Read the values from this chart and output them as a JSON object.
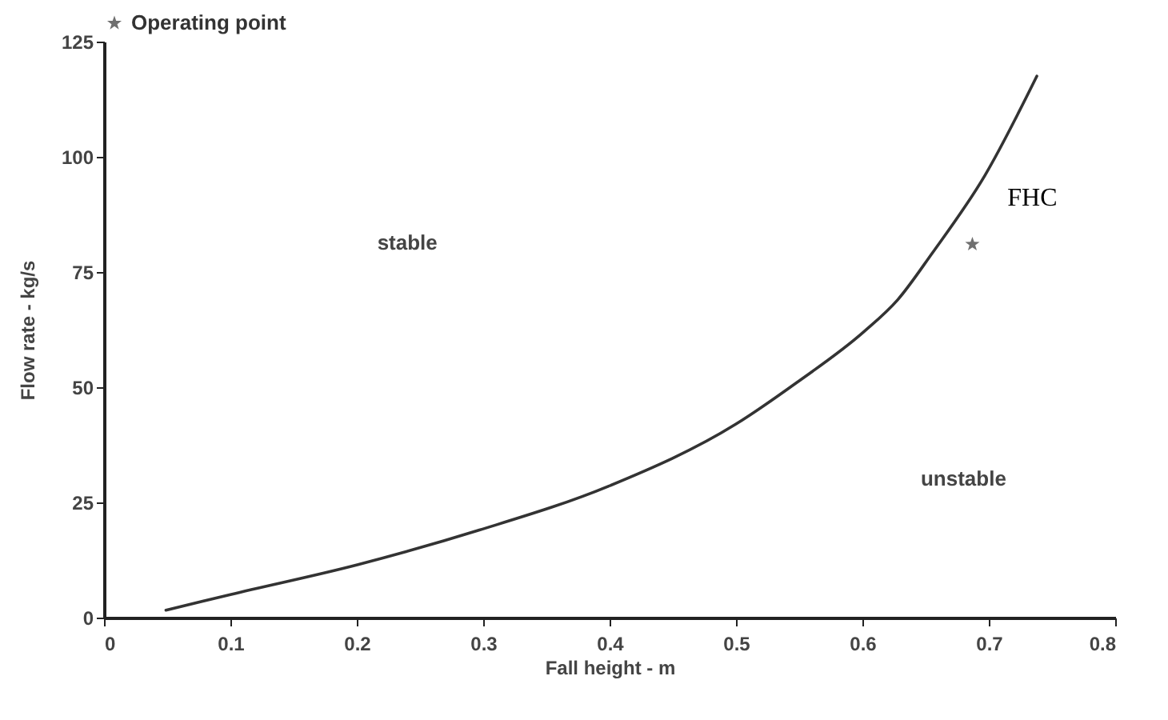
{
  "chart_data": {
    "type": "line",
    "xlabel": "Fall height - m",
    "ylabel": "Flow rate - kg/s",
    "xlim": [
      0,
      0.8
    ],
    "xticks": [
      0,
      0.1,
      0.2,
      0.3,
      0.4,
      0.5,
      0.6,
      0.7,
      0.8
    ],
    "ylim": [
      0,
      125
    ],
    "yticks": [
      0,
      25,
      50,
      75,
      100,
      125
    ],
    "grid": false,
    "legend": "top",
    "annotations": [
      "stable",
      "unstable"
    ],
    "series": [
      {
        "name": "FHC",
        "color": "#333333",
        "x": [
          0.049,
          0.1,
          0.201,
          0.297,
          0.399,
          0.5,
          0.548,
          0.601,
          0.628,
          0.655,
          0.697,
          0.738
        ],
        "values": [
          1.6,
          5,
          11.5,
          19,
          28.5,
          42,
          51,
          62,
          69,
          79,
          96,
          117.5
        ]
      },
      {
        "name": "Operating point",
        "type": "scatter",
        "marker": "star",
        "color": "#333333",
        "x": [
          0.687
        ],
        "values": [
          81
        ]
      }
    ]
  }
}
